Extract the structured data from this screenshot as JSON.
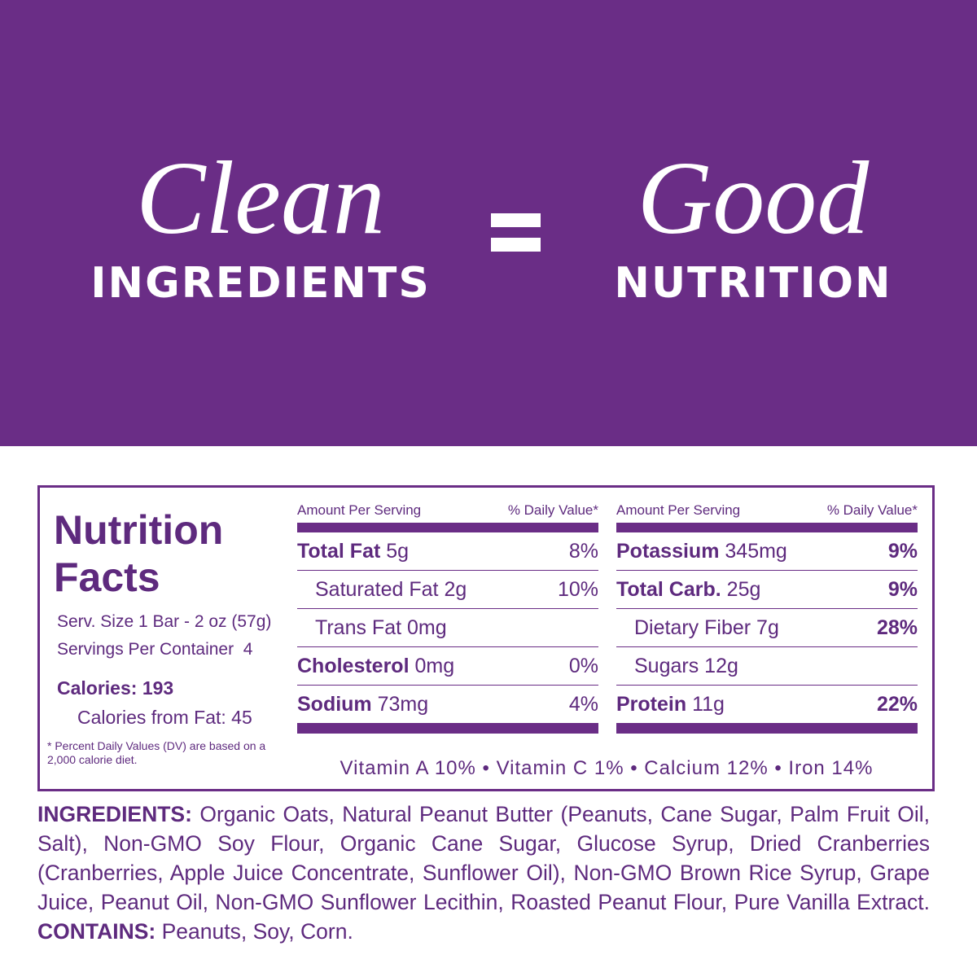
{
  "banner": {
    "left_script": "Clean",
    "left_caps": "INGREDIENTS",
    "right_script": "Good",
    "right_caps": "NUTRITION"
  },
  "nutrition": {
    "title_line1": "Nutrition",
    "title_line2": "Facts",
    "serving_size": "Serv. Size 1 Bar - 2 oz (57g)",
    "servings_label": "Servings Per Container",
    "servings_value": "4",
    "calories": "Calories: 193",
    "calories_from_fat": "Calories from Fat: 45",
    "footnote": "* Percent Daily Values (DV) are based on a 2,000 calorie diet.",
    "columns": [
      {
        "header_amount": "Amount Per Serving",
        "header_dv": "% Daily Value*",
        "rows": [
          {
            "name": "Total Fat",
            "amount": "5g",
            "dv": "8%"
          },
          {
            "name": "Saturated Fat",
            "amount": "2g",
            "dv": "10%"
          },
          {
            "name": "Trans Fat",
            "amount": "0mg"
          },
          {
            "name": "Cholesterol",
            "amount": "0mg",
            "dv": "0%"
          },
          {
            "name": "Sodium",
            "amount": "73mg",
            "dv": "4%"
          }
        ]
      },
      {
        "header_amount": "Amount Per Serving",
        "header_dv": "% Daily Value*",
        "rows": [
          {
            "name": "Potassium",
            "amount": "345mg",
            "dv": "9%"
          },
          {
            "name": "Total Carb.",
            "amount": "25g",
            "dv": "9%"
          },
          {
            "name": "Dietary Fiber",
            "amount": "7g",
            "dv": "28%"
          },
          {
            "name": "Sugars",
            "amount": "12g"
          },
          {
            "name": "Protein",
            "amount": "11g",
            "dv": "22%"
          }
        ]
      }
    ],
    "vitamins": "Vitamin A 10% • Vitamin C 1% • Calcium 12% • Iron 14%"
  },
  "ingredients": {
    "label": "INGREDIENTS:",
    "text": "Organic Oats, Natural Peanut Butter (Peanuts, Cane Sugar, Palm Fruit Oil, Salt), Non-GMO Soy Flour, Organic Cane Sugar, Glucose Syrup, Dried Cranberries (Cranberries, Apple Juice Concentrate, Sunflower Oil), Non-GMO Brown Rice Syrup, Grape Juice, Peanut Oil, Non-GMO Sunflower Lecithin, Roasted Peanut Flour, Pure Vanilla Extract.",
    "contains_label": "CONTAINS:",
    "contains_text": "Peanuts, Soy, Corn."
  }
}
